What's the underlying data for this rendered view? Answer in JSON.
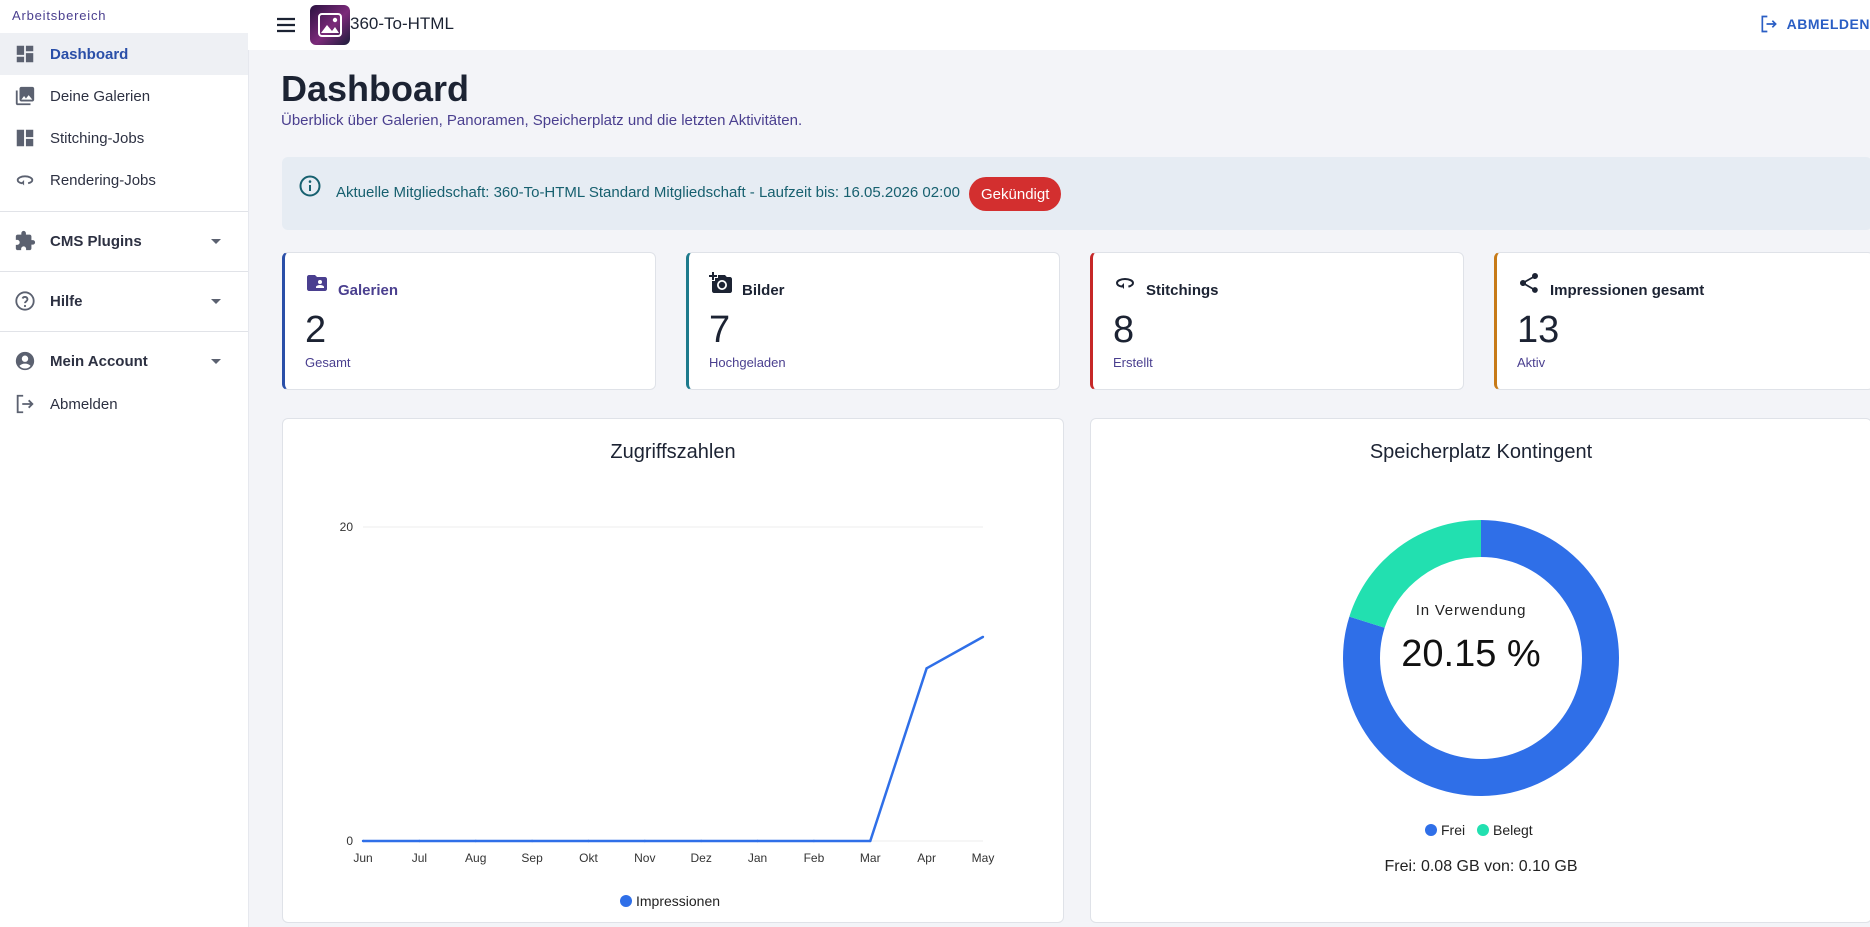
{
  "sidebar": {
    "workspace_title": "Arbeitsbereich",
    "items": [
      {
        "label": "Dashboard",
        "icon": "dashboard-icon"
      },
      {
        "label": "Deine Galerien",
        "icon": "gallery-icon"
      },
      {
        "label": "Stitching-Jobs",
        "icon": "stitching-jobs-icon"
      },
      {
        "label": "Rendering-Jobs",
        "icon": "rendering-jobs-icon"
      }
    ],
    "groups": [
      {
        "label": "CMS Plugins",
        "icon": "puzzle-icon"
      },
      {
        "label": "Hilfe",
        "icon": "help-icon"
      },
      {
        "label": "Mein Account",
        "icon": "account-icon"
      }
    ],
    "logout_label": "Abmelden"
  },
  "topbar": {
    "app_name": "360-To-HTML",
    "logout_label": "ABMELDEN"
  },
  "header": {
    "title": "Dashboard",
    "subtitle": "Überblick über Galerien, Panoramen, Speicherplatz und die letzten Aktivitäten."
  },
  "alert": {
    "message": "Aktuelle Mitgliedschaft: 360-To-HTML Standard Mitgliedschaft - Laufzeit bis: 16.05.2026 02:00",
    "badge": "Gekündigt"
  },
  "cards": [
    {
      "title": "Galerien",
      "value": "2",
      "sub": "Gesamt",
      "accent": "#2a4fa8",
      "icon": "folder-user-icon"
    },
    {
      "title": "Bilder",
      "value": "7",
      "sub": "Hochgeladen",
      "accent": "#1d7a8c",
      "icon": "add-photo-icon"
    },
    {
      "title": "Stitchings",
      "value": "8",
      "sub": "Erstellt",
      "accent": "#c62828",
      "icon": "360-icon"
    },
    {
      "title": "Impressionen gesamt",
      "value": "13",
      "sub": "Aktiv",
      "accent": "#c77a17",
      "icon": "share-icon"
    }
  ],
  "chart_data": [
    {
      "type": "line",
      "title": "Zugriffszahlen",
      "x": [
        "Jun",
        "Jul",
        "Aug",
        "Sep",
        "Okt",
        "Nov",
        "Dez",
        "Jan",
        "Feb",
        "Mar",
        "Apr",
        "May"
      ],
      "series": [
        {
          "name": "Impressionen",
          "values": [
            0,
            0,
            0,
            0,
            0,
            0,
            0,
            0,
            0,
            0,
            11,
            13
          ],
          "color": "#2f6fe8"
        }
      ],
      "yticks": [
        0,
        20
      ],
      "ylim": [
        0,
        20
      ],
      "legend": "bottom"
    },
    {
      "type": "pie",
      "title": "Speicherplatz Kontingent",
      "center_label": "In Verwendung",
      "center_value": "20.15 %",
      "slices": [
        {
          "name": "Frei",
          "value": 79.85,
          "color": "#2f6fe8"
        },
        {
          "name": "Belegt",
          "value": 20.15,
          "color": "#22e0b0"
        }
      ],
      "footer": "Frei: 0.08 GB von: 0.10 GB",
      "legend": "bottom"
    }
  ]
}
